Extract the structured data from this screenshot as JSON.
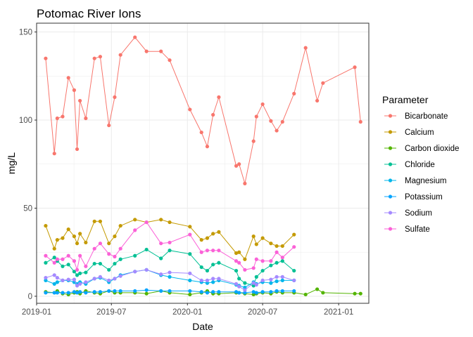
{
  "chart_data": {
    "type": "line",
    "title": "Potomac River Ions",
    "xlabel": "Date",
    "ylabel": "mg/L",
    "xlim": [
      "2019-01-01",
      "2021-03-15"
    ],
    "ylim": [
      -4,
      155
    ],
    "x_ticks": [
      {
        "date": "2019-01-01",
        "label": "2019-01"
      },
      {
        "date": "2019-07-01",
        "label": "2019-07"
      },
      {
        "date": "2020-01-01",
        "label": "2020-01"
      },
      {
        "date": "2020-07-01",
        "label": "2020-07"
      },
      {
        "date": "2021-01-01",
        "label": "2021-01"
      }
    ],
    "y_ticks": [
      0,
      50,
      100,
      150
    ],
    "grid": true,
    "legend": {
      "title": "Parameter",
      "position": "right"
    },
    "series": [
      {
        "name": "Bicarbonate",
        "color": "#F8766D",
        "points": [
          [
            "2019-01-23",
            135
          ],
          [
            "2019-02-13",
            81
          ],
          [
            "2019-02-20",
            101
          ],
          [
            "2019-03-05",
            102
          ],
          [
            "2019-03-19",
            124
          ],
          [
            "2019-04-02",
            117
          ],
          [
            "2019-04-09",
            83.5
          ],
          [
            "2019-04-16",
            111
          ],
          [
            "2019-04-30",
            101
          ],
          [
            "2019-05-21",
            135
          ],
          [
            "2019-06-04",
            136
          ],
          [
            "2019-06-25",
            97
          ],
          [
            "2019-07-09",
            113
          ],
          [
            "2019-07-23",
            137
          ],
          [
            "2019-08-27",
            147
          ],
          [
            "2019-09-24",
            139
          ],
          [
            "2019-10-29",
            139
          ],
          [
            "2019-11-19",
            134
          ],
          [
            "2020-01-07",
            106
          ],
          [
            "2020-02-04",
            93
          ],
          [
            "2020-02-18",
            85
          ],
          [
            "2020-03-03",
            103
          ],
          [
            "2020-03-17",
            113
          ],
          [
            "2020-04-28",
            74
          ],
          [
            "2020-05-05",
            75
          ],
          [
            "2020-05-19",
            64
          ],
          [
            "2020-06-09",
            88
          ],
          [
            "2020-06-16",
            102
          ],
          [
            "2020-07-01",
            109
          ],
          [
            "2020-07-21",
            99.5
          ],
          [
            "2020-08-04",
            94
          ],
          [
            "2020-08-18",
            99
          ],
          [
            "2020-09-15",
            115
          ],
          [
            "2020-10-13",
            141
          ],
          [
            "2020-11-10",
            111
          ],
          [
            "2020-11-24",
            121
          ],
          [
            "2021-02-09",
            130
          ],
          [
            "2021-02-23",
            99
          ]
        ]
      },
      {
        "name": "Calcium",
        "color": "#C49A00",
        "points": [
          [
            "2019-01-23",
            40
          ],
          [
            "2019-02-13",
            27
          ],
          [
            "2019-02-20",
            32
          ],
          [
            "2019-03-05",
            33
          ],
          [
            "2019-03-19",
            38
          ],
          [
            "2019-04-02",
            34
          ],
          [
            "2019-04-09",
            30
          ],
          [
            "2019-04-16",
            35.5
          ],
          [
            "2019-04-30",
            30.5
          ],
          [
            "2019-05-21",
            42.5
          ],
          [
            "2019-06-04",
            42.5
          ],
          [
            "2019-06-25",
            30
          ],
          [
            "2019-07-09",
            34
          ],
          [
            "2019-07-23",
            40
          ],
          [
            "2019-08-27",
            43.5
          ],
          [
            "2019-09-24",
            42
          ],
          [
            "2019-10-29",
            43.5
          ],
          [
            "2019-11-19",
            42
          ],
          [
            "2020-01-07",
            39.5
          ],
          [
            "2020-02-04",
            32
          ],
          [
            "2020-02-18",
            33
          ],
          [
            "2020-03-03",
            35.5
          ],
          [
            "2020-03-17",
            36.5
          ],
          [
            "2020-04-28",
            24.5
          ],
          [
            "2020-05-05",
            25
          ],
          [
            "2020-05-19",
            21
          ],
          [
            "2020-06-09",
            34
          ],
          [
            "2020-06-16",
            29.5
          ],
          [
            "2020-07-01",
            33
          ],
          [
            "2020-07-21",
            30
          ],
          [
            "2020-08-04",
            28.5
          ],
          [
            "2020-08-18",
            28.5
          ],
          [
            "2020-09-15",
            35
          ]
        ]
      },
      {
        "name": "Carbon dioxide",
        "color": "#53B400",
        "points": [
          [
            "2019-01-23",
            2.5
          ],
          [
            "2019-02-13",
            2
          ],
          [
            "2019-02-20",
            3
          ],
          [
            "2019-03-05",
            1.5
          ],
          [
            "2019-03-19",
            1
          ],
          [
            "2019-04-02",
            2
          ],
          [
            "2019-04-09",
            2.5
          ],
          [
            "2019-04-16",
            1.5
          ],
          [
            "2019-04-30",
            3
          ],
          [
            "2019-05-21",
            2
          ],
          [
            "2019-06-04",
            1.5
          ],
          [
            "2019-06-25",
            3
          ],
          [
            "2019-07-09",
            2
          ],
          [
            "2019-07-23",
            2
          ],
          [
            "2019-08-27",
            2
          ],
          [
            "2019-09-24",
            1.5
          ],
          [
            "2019-10-29",
            3
          ],
          [
            "2019-11-19",
            2
          ],
          [
            "2020-01-07",
            1
          ],
          [
            "2020-02-04",
            2
          ],
          [
            "2020-02-18",
            3
          ],
          [
            "2020-03-03",
            1.5
          ],
          [
            "2020-03-17",
            1.5
          ],
          [
            "2020-04-28",
            2
          ],
          [
            "2020-05-05",
            2
          ],
          [
            "2020-05-19",
            1.5
          ],
          [
            "2020-06-09",
            1
          ],
          [
            "2020-06-16",
            1.5
          ],
          [
            "2020-07-01",
            2
          ],
          [
            "2020-07-21",
            1.5
          ],
          [
            "2020-08-04",
            2.5
          ],
          [
            "2020-08-18",
            2
          ],
          [
            "2020-09-15",
            2
          ],
          [
            "2020-10-13",
            1
          ],
          [
            "2020-11-10",
            4
          ],
          [
            "2020-11-24",
            2
          ],
          [
            "2021-02-09",
            1.5
          ],
          [
            "2021-02-23",
            1.5
          ]
        ]
      },
      {
        "name": "Chloride",
        "color": "#00C094",
        "points": [
          [
            "2019-01-23",
            19
          ],
          [
            "2019-02-13",
            22
          ],
          [
            "2019-02-20",
            20
          ],
          [
            "2019-03-05",
            17
          ],
          [
            "2019-03-19",
            18
          ],
          [
            "2019-04-02",
            14
          ],
          [
            "2019-04-09",
            12
          ],
          [
            "2019-04-16",
            13
          ],
          [
            "2019-04-30",
            13.5
          ],
          [
            "2019-05-21",
            18.5
          ],
          [
            "2019-06-04",
            18.5
          ],
          [
            "2019-06-25",
            15
          ],
          [
            "2019-07-09",
            18.5
          ],
          [
            "2019-07-23",
            21
          ],
          [
            "2019-08-27",
            23
          ],
          [
            "2019-09-24",
            26.5
          ],
          [
            "2019-10-29",
            21.5
          ],
          [
            "2019-11-19",
            26
          ],
          [
            "2020-01-07",
            24
          ],
          [
            "2020-02-04",
            16.5
          ],
          [
            "2020-02-18",
            14.5
          ],
          [
            "2020-03-03",
            18
          ],
          [
            "2020-03-17",
            19
          ],
          [
            "2020-04-28",
            14.5
          ],
          [
            "2020-05-05",
            10
          ],
          [
            "2020-05-19",
            7.5
          ],
          [
            "2020-06-09",
            6
          ],
          [
            "2020-06-16",
            11
          ],
          [
            "2020-07-01",
            14.5
          ],
          [
            "2020-07-21",
            17.5
          ],
          [
            "2020-08-04",
            19
          ],
          [
            "2020-08-18",
            20
          ],
          [
            "2020-09-15",
            14.5
          ]
        ]
      },
      {
        "name": "Magnesium",
        "color": "#00B6EB",
        "points": [
          [
            "2019-01-23",
            9
          ],
          [
            "2019-02-13",
            7
          ],
          [
            "2019-02-20",
            8
          ],
          [
            "2019-03-05",
            9
          ],
          [
            "2019-03-19",
            9
          ],
          [
            "2019-04-02",
            8
          ],
          [
            "2019-04-09",
            7
          ],
          [
            "2019-04-16",
            8
          ],
          [
            "2019-04-30",
            7
          ],
          [
            "2019-05-21",
            10
          ],
          [
            "2019-06-04",
            10.5
          ],
          [
            "2019-06-25",
            8
          ],
          [
            "2019-07-09",
            10
          ],
          [
            "2019-07-23",
            12
          ],
          [
            "2019-08-27",
            14
          ],
          [
            "2019-09-24",
            15
          ],
          [
            "2019-10-29",
            12
          ],
          [
            "2019-11-19",
            11
          ],
          [
            "2020-01-07",
            9
          ],
          [
            "2020-02-04",
            8
          ],
          [
            "2020-02-18",
            7.5
          ],
          [
            "2020-03-03",
            8
          ],
          [
            "2020-03-17",
            9
          ],
          [
            "2020-04-28",
            6.5
          ],
          [
            "2020-05-05",
            6
          ],
          [
            "2020-05-19",
            5
          ],
          [
            "2020-06-09",
            8
          ],
          [
            "2020-06-16",
            7
          ],
          [
            "2020-07-01",
            8
          ],
          [
            "2020-07-21",
            7.5
          ],
          [
            "2020-08-04",
            8.5
          ],
          [
            "2020-08-18",
            9
          ],
          [
            "2020-09-15",
            9
          ]
        ]
      },
      {
        "name": "Potassium",
        "color": "#06A4FF",
        "points": [
          [
            "2019-01-23",
            2
          ],
          [
            "2019-02-13",
            2
          ],
          [
            "2019-02-20",
            2
          ],
          [
            "2019-03-05",
            2
          ],
          [
            "2019-03-19",
            2
          ],
          [
            "2019-04-02",
            2.5
          ],
          [
            "2019-04-09",
            2
          ],
          [
            "2019-04-16",
            2.5
          ],
          [
            "2019-04-30",
            2
          ],
          [
            "2019-05-21",
            2.5
          ],
          [
            "2019-06-04",
            2.5
          ],
          [
            "2019-06-25",
            3
          ],
          [
            "2019-07-09",
            3
          ],
          [
            "2019-07-23",
            3
          ],
          [
            "2019-08-27",
            3
          ],
          [
            "2019-09-24",
            3.5
          ],
          [
            "2019-10-29",
            3
          ],
          [
            "2019-11-19",
            3
          ],
          [
            "2020-01-07",
            3
          ],
          [
            "2020-02-04",
            2.5
          ],
          [
            "2020-02-18",
            2
          ],
          [
            "2020-03-03",
            2.5
          ],
          [
            "2020-03-17",
            2.5
          ],
          [
            "2020-04-28",
            2.5
          ],
          [
            "2020-05-05",
            2
          ],
          [
            "2020-05-19",
            2
          ],
          [
            "2020-06-09",
            2.5
          ],
          [
            "2020-06-16",
            2
          ],
          [
            "2020-07-01",
            2.5
          ],
          [
            "2020-07-21",
            2.5
          ],
          [
            "2020-08-04",
            3
          ],
          [
            "2020-08-18",
            3
          ],
          [
            "2020-09-15",
            3
          ]
        ]
      },
      {
        "name": "Sodium",
        "color": "#A58AFF",
        "points": [
          [
            "2019-01-23",
            10.5
          ],
          [
            "2019-02-13",
            12
          ],
          [
            "2019-02-20",
            10.5
          ],
          [
            "2019-03-05",
            9
          ],
          [
            "2019-03-19",
            9.5
          ],
          [
            "2019-04-02",
            9.5
          ],
          [
            "2019-04-09",
            6
          ],
          [
            "2019-04-16",
            7
          ],
          [
            "2019-04-30",
            8
          ],
          [
            "2019-05-21",
            10
          ],
          [
            "2019-06-04",
            11
          ],
          [
            "2019-06-25",
            9
          ],
          [
            "2019-07-09",
            10
          ],
          [
            "2019-07-23",
            11.5
          ],
          [
            "2019-08-27",
            14
          ],
          [
            "2019-09-24",
            15
          ],
          [
            "2019-10-29",
            12.5
          ],
          [
            "2019-11-19",
            13.5
          ],
          [
            "2020-01-07",
            13
          ],
          [
            "2020-02-04",
            9
          ],
          [
            "2020-02-18",
            9
          ],
          [
            "2020-03-03",
            10
          ],
          [
            "2020-03-17",
            10
          ],
          [
            "2020-04-28",
            7
          ],
          [
            "2020-05-05",
            5.5
          ],
          [
            "2020-05-19",
            3.5
          ],
          [
            "2020-06-09",
            7.5
          ],
          [
            "2020-06-16",
            6.5
          ],
          [
            "2020-07-01",
            9
          ],
          [
            "2020-07-21",
            9.5
          ],
          [
            "2020-08-04",
            11
          ],
          [
            "2020-08-18",
            11
          ],
          [
            "2020-09-15",
            9
          ]
        ]
      },
      {
        "name": "Sulfate",
        "color": "#FB61D7",
        "points": [
          [
            "2019-01-23",
            23
          ],
          [
            "2019-02-13",
            19
          ],
          [
            "2019-02-20",
            21
          ],
          [
            "2019-03-05",
            21
          ],
          [
            "2019-03-19",
            23
          ],
          [
            "2019-04-02",
            20
          ],
          [
            "2019-04-09",
            15
          ],
          [
            "2019-04-16",
            23
          ],
          [
            "2019-04-30",
            17
          ],
          [
            "2019-05-21",
            27
          ],
          [
            "2019-06-04",
            30
          ],
          [
            "2019-06-25",
            24
          ],
          [
            "2019-07-09",
            22.5
          ],
          [
            "2019-07-23",
            27
          ],
          [
            "2019-08-27",
            37.5
          ],
          [
            "2019-09-24",
            42
          ],
          [
            "2019-10-29",
            30
          ],
          [
            "2019-11-19",
            30.5
          ],
          [
            "2020-01-07",
            35
          ],
          [
            "2020-02-04",
            25
          ],
          [
            "2020-02-18",
            26
          ],
          [
            "2020-03-03",
            26
          ],
          [
            "2020-03-17",
            26
          ],
          [
            "2020-04-28",
            20
          ],
          [
            "2020-05-05",
            19
          ],
          [
            "2020-05-19",
            15
          ],
          [
            "2020-06-09",
            16
          ],
          [
            "2020-06-16",
            21
          ],
          [
            "2020-07-01",
            20
          ],
          [
            "2020-07-21",
            20
          ],
          [
            "2020-08-04",
            25
          ],
          [
            "2020-08-18",
            22
          ],
          [
            "2020-09-15",
            28
          ]
        ]
      }
    ]
  }
}
